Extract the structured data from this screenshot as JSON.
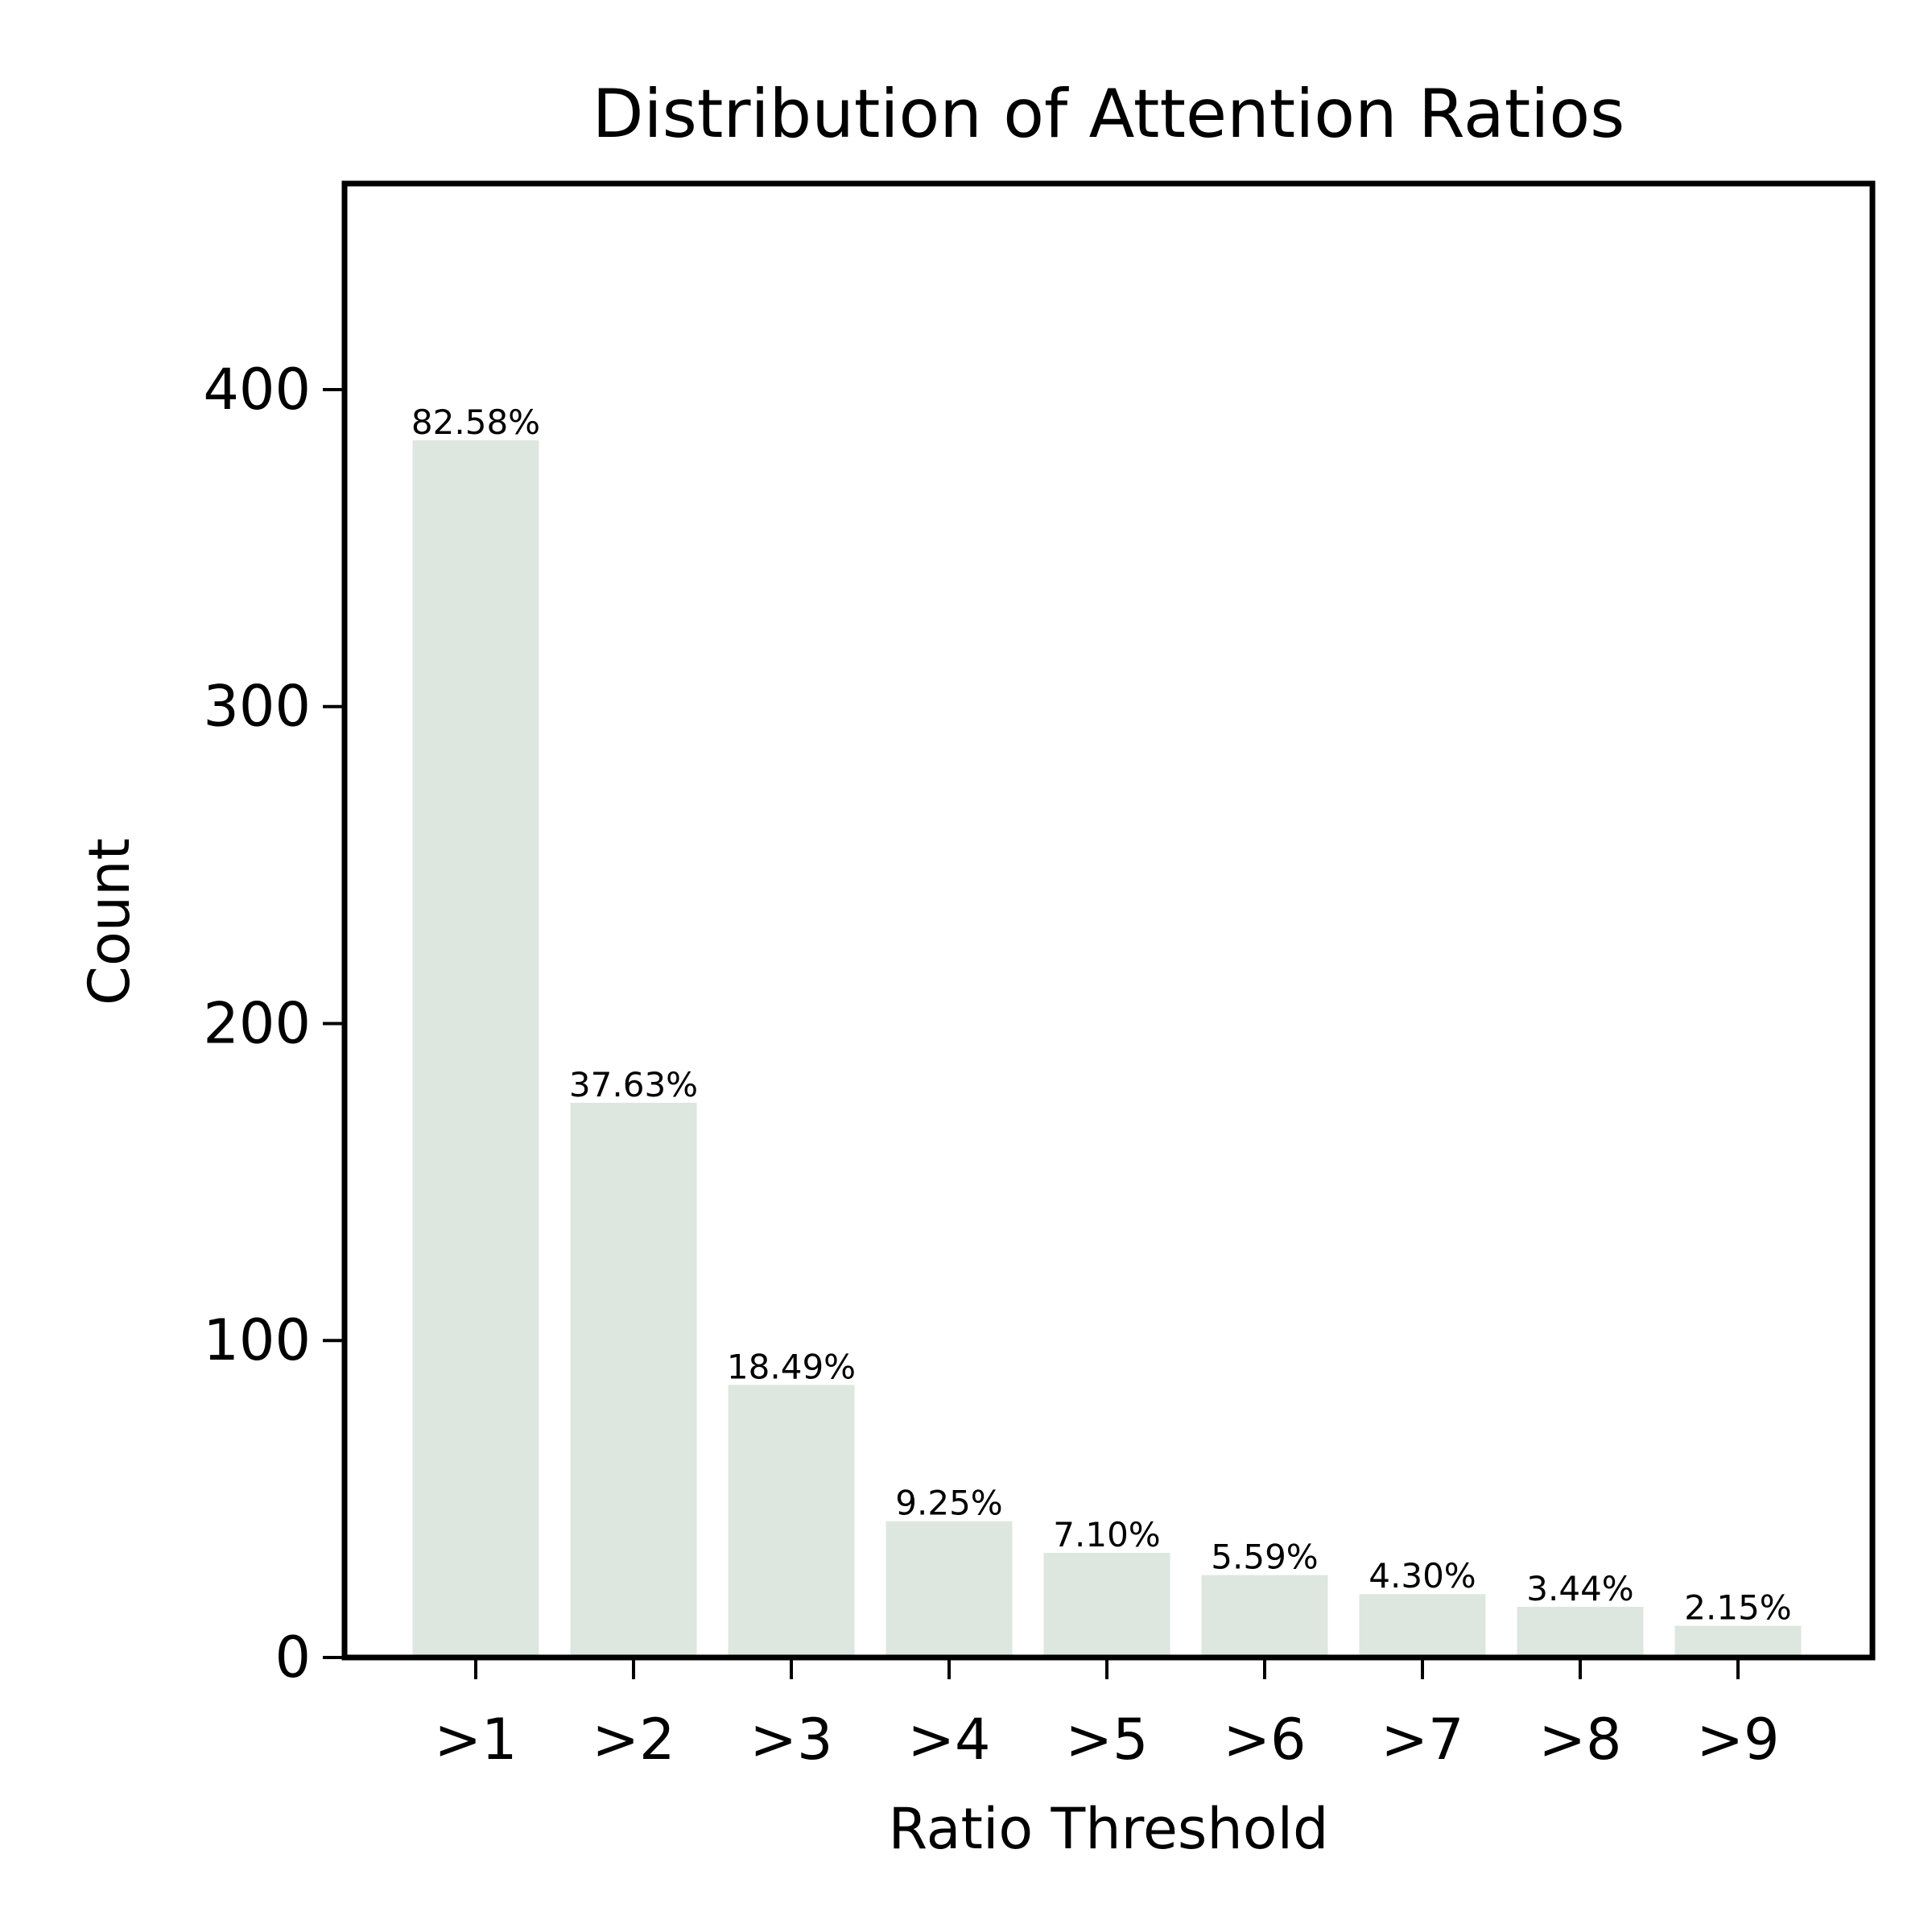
{
  "chart_data": {
    "type": "bar",
    "title": "Distribution of Attention Ratios",
    "xlabel": "Ratio Threshold",
    "ylabel": "Count",
    "categories": [
      ">1",
      ">2",
      ">3",
      ">4",
      ">5",
      ">6",
      ">7",
      ">8",
      ">9"
    ],
    "values": [
      384,
      175,
      86,
      43,
      33,
      26,
      20,
      16,
      10
    ],
    "data_labels": [
      "82.58%",
      "37.63%",
      "18.49%",
      "9.25%",
      "7.10%",
      "5.59%",
      "4.30%",
      "3.44%",
      "2.15%"
    ],
    "y_ticks": [
      0,
      100,
      200,
      300,
      400
    ],
    "y_tick_labels": [
      "0",
      "100",
      "200",
      "300",
      "400"
    ],
    "ylim": [
      0,
      465
    ],
    "grid": false,
    "legend": "none",
    "bar_color": "#dde7df",
    "axis_color": "#000000"
  }
}
